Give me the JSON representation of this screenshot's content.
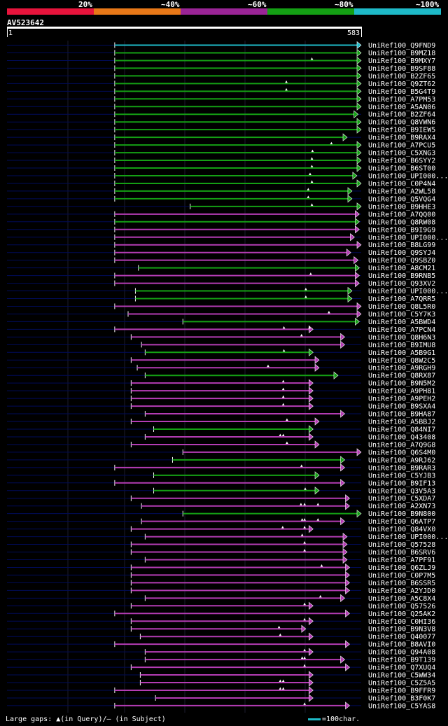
{
  "query_id": "AV523642",
  "legend": {
    "labels": [
      "20%",
      "~40%",
      "~60%",
      "~80%",
      "~100%"
    ],
    "colors": [
      "#e8143c",
      "#e87818",
      "#9a2496",
      "#14a014",
      "#1ebac8"
    ]
  },
  "ruler": {
    "start_label": "1",
    "end_label": "583"
  },
  "footer": {
    "gaps_text": "Large gaps: ▲(in Query)/– (in Subject)",
    "scale_text": "=100char."
  },
  "chart_data": {
    "type": "alignment-hits",
    "query_length": 583,
    "title": "AV523642",
    "color_key": {
      "G": "#14a014",
      "P": "#b43cb4",
      "C": "#1ebac8",
      "N": "#000b5a"
    },
    "hits": [
      {
        "name": "UniRef100_Q9FND9",
        "start": 178,
        "end": 583,
        "color": "C",
        "gaps": []
      },
      {
        "name": "UniRef100_B9MZ18",
        "start": 178,
        "end": 583,
        "color": "G",
        "gaps": []
      },
      {
        "name": "UniRef100_B9MXY7",
        "start": 178,
        "end": 583,
        "color": "G",
        "gaps": [
          502
        ]
      },
      {
        "name": "UniRef100_B9SF88",
        "start": 178,
        "end": 583,
        "color": "G",
        "gaps": []
      },
      {
        "name": "UniRef100_B2ZF65",
        "start": 178,
        "end": 583,
        "color": "G",
        "gaps": []
      },
      {
        "name": "UniRef100_Q9ZT62",
        "start": 178,
        "end": 583,
        "color": "G",
        "gaps": [
          460
        ]
      },
      {
        "name": "UniRef100_B5G4T9",
        "start": 178,
        "end": 583,
        "color": "G",
        "gaps": [
          460
        ]
      },
      {
        "name": "UniRef100_A7PM53",
        "start": 178,
        "end": 583,
        "color": "G",
        "gaps": []
      },
      {
        "name": "UniRef100_A5AN06",
        "start": 178,
        "end": 583,
        "color": "G",
        "gaps": []
      },
      {
        "name": "UniRef100_B2ZF64",
        "start": 178,
        "end": 578,
        "color": "G",
        "gaps": []
      },
      {
        "name": "UniRef100_Q8VWN6",
        "start": 178,
        "end": 583,
        "color": "G",
        "gaps": []
      },
      {
        "name": "UniRef100_B9IEW5",
        "start": 178,
        "end": 583,
        "color": "G",
        "gaps": []
      },
      {
        "name": "UniRef100_B9RAX4",
        "start": 178,
        "end": 560,
        "color": "G",
        "gaps": []
      },
      {
        "name": "UniRef100_A7PCU5",
        "start": 178,
        "end": 583,
        "color": "G",
        "gaps": [
          534
        ]
      },
      {
        "name": "UniRef100_C5XNG3",
        "start": 178,
        "end": 583,
        "color": "G",
        "gaps": [
          503
        ]
      },
      {
        "name": "UniRef100_B6SYY2",
        "start": 178,
        "end": 583,
        "color": "G",
        "gaps": [
          502
        ]
      },
      {
        "name": "UniRef100_B6ST00",
        "start": 178,
        "end": 583,
        "color": "G",
        "gaps": [
          502
        ]
      },
      {
        "name": "UniRef100_UPI000...",
        "start": 178,
        "end": 576,
        "color": "G",
        "gaps": [
          499
        ]
      },
      {
        "name": "UniRef100_C0P4N4",
        "start": 178,
        "end": 583,
        "color": "G",
        "gaps": [
          502
        ]
      },
      {
        "name": "UniRef100_A2WL58",
        "start": 178,
        "end": 568,
        "color": "G",
        "gaps": [
          496
        ]
      },
      {
        "name": "UniRef100_Q5VQG4",
        "start": 178,
        "end": 568,
        "color": "G",
        "gaps": [
          496
        ]
      },
      {
        "name": "UniRef100_B9HHE3",
        "start": 302,
        "end": 583,
        "color": "G",
        "gaps": [
          502
        ]
      },
      {
        "name": "UniRef100_A7QQ00",
        "start": 178,
        "end": 580,
        "color": "P",
        "gaps": []
      },
      {
        "name": "UniRef100_Q8RW08",
        "start": 178,
        "end": 580,
        "color": "G",
        "gaps": []
      },
      {
        "name": "UniRef100_B9I9G9",
        "start": 178,
        "end": 580,
        "color": "P",
        "gaps": []
      },
      {
        "name": "UniRef100_UPI000...",
        "start": 178,
        "end": 572,
        "color": "P",
        "gaps": []
      },
      {
        "name": "UniRef100_B8LG99",
        "start": 178,
        "end": 583,
        "color": "P",
        "gaps": []
      },
      {
        "name": "UniRef100_Q9SYJ4",
        "start": 178,
        "end": 566,
        "color": "P",
        "gaps": []
      },
      {
        "name": "UniRef100_Q9SBZ0",
        "start": 178,
        "end": 578,
        "color": "P",
        "gaps": []
      },
      {
        "name": "UniRef100_A8CM21",
        "start": 217,
        "end": 580,
        "color": "G",
        "gaps": []
      },
      {
        "name": "UniRef100_B9RNB5",
        "start": 178,
        "end": 580,
        "color": "P",
        "gaps": [
          500
        ]
      },
      {
        "name": "UniRef100_Q93XV2",
        "start": 178,
        "end": 580,
        "color": "P",
        "gaps": []
      },
      {
        "name": "UniRef100_UPI000...",
        "start": 212,
        "end": 568,
        "color": "G",
        "gaps": [
          492
        ]
      },
      {
        "name": "UniRef100_A7QRR5",
        "start": 212,
        "end": 568,
        "color": "G",
        "gaps": [
          492
        ]
      },
      {
        "name": "UniRef100_Q8L5R0",
        "start": 178,
        "end": 583,
        "color": "P",
        "gaps": []
      },
      {
        "name": "UniRef100_C5Y7K3",
        "start": 200,
        "end": 583,
        "color": "P",
        "gaps": [
          530
        ]
      },
      {
        "name": "UniRef100_A5BWD4",
        "start": 290,
        "end": 580,
        "color": "G",
        "gaps": []
      },
      {
        "name": "UniRef100_A7PCN4",
        "start": 178,
        "end": 504,
        "color": "P",
        "gaps": [
          456,
          498
        ]
      },
      {
        "name": "UniRef100_Q8H6N3",
        "start": 205,
        "end": 556,
        "color": "P",
        "gaps": [
          485
        ]
      },
      {
        "name": "UniRef100_B9IMU8",
        "start": 222,
        "end": 556,
        "color": "P",
        "gaps": []
      },
      {
        "name": "UniRef100_A5B9G1",
        "start": 228,
        "end": 504,
        "color": "G",
        "gaps": [
          456
        ]
      },
      {
        "name": "UniRef100_Q8W2C5",
        "start": 205,
        "end": 514,
        "color": "P",
        "gaps": []
      },
      {
        "name": "UniRef100_A9RGH9",
        "start": 215,
        "end": 514,
        "color": "P",
        "gaps": [
          430
        ]
      },
      {
        "name": "UniRef100_Q8RX87",
        "start": 228,
        "end": 545,
        "color": "G",
        "gaps": []
      },
      {
        "name": "UniRef100_B9N5M2",
        "start": 205,
        "end": 504,
        "color": "P",
        "gaps": [
          455
        ]
      },
      {
        "name": "UniRef100_A9PH81",
        "start": 205,
        "end": 504,
        "color": "P",
        "gaps": [
          455
        ]
      },
      {
        "name": "UniRef100_A9PEH2",
        "start": 205,
        "end": 504,
        "color": "P",
        "gaps": [
          455
        ]
      },
      {
        "name": "UniRef100_B9SXA4",
        "start": 205,
        "end": 504,
        "color": "P",
        "gaps": [
          455
        ]
      },
      {
        "name": "UniRef100_B9HA87",
        "start": 228,
        "end": 556,
        "color": "P",
        "gaps": []
      },
      {
        "name": "UniRef100_A5BBJ2",
        "start": 205,
        "end": 514,
        "color": "P",
        "gaps": [
          461
        ]
      },
      {
        "name": "UniRef100_Q84NI7",
        "start": 242,
        "end": 504,
        "color": "G",
        "gaps": []
      },
      {
        "name": "UniRef100_Q43408",
        "start": 228,
        "end": 504,
        "color": "P",
        "gaps": [
          450,
          455
        ]
      },
      {
        "name": "UniRef100_A7Q9G8",
        "start": 205,
        "end": 514,
        "color": "P",
        "gaps": [
          461
        ]
      },
      {
        "name": "UniRef100_Q6S4M0",
        "start": 290,
        "end": 583,
        "color": "P",
        "gaps": []
      },
      {
        "name": "UniRef100_A9RJ62",
        "start": 273,
        "end": 556,
        "color": "G",
        "gaps": []
      },
      {
        "name": "UniRef100_B9RAR3",
        "start": 178,
        "end": 556,
        "color": "P",
        "gaps": [
          485
        ]
      },
      {
        "name": "UniRef100_C5YJB3",
        "start": 242,
        "end": 514,
        "color": "G",
        "gaps": []
      },
      {
        "name": "UniRef100_B9IF13",
        "start": 178,
        "end": 556,
        "color": "P",
        "gaps": []
      },
      {
        "name": "UniRef100_Q3V5A3",
        "start": 242,
        "end": 514,
        "color": "G",
        "gaps": [
          491
        ]
      },
      {
        "name": "UniRef100_C5XDA7",
        "start": 205,
        "end": 564,
        "color": "P",
        "gaps": []
      },
      {
        "name": "UniRef100_A2XN73",
        "start": 222,
        "end": 564,
        "color": "P",
        "gaps": [
          484,
          490,
          512
        ]
      },
      {
        "name": "UniRef100_B9N800",
        "start": 290,
        "end": 583,
        "color": "G",
        "gaps": []
      },
      {
        "name": "UniRef100_Q6ATP7",
        "start": 222,
        "end": 556,
        "color": "P",
        "gaps": [
          486,
          490,
          512
        ]
      },
      {
        "name": "UniRef100_Q84VX0",
        "start": 205,
        "end": 504,
        "color": "P",
        "gaps": [
          454,
          490
        ]
      },
      {
        "name": "UniRef100_UPI000...",
        "start": 228,
        "end": 560,
        "color": "P",
        "gaps": [
          486
        ]
      },
      {
        "name": "UniRef100_Q57528",
        "start": 205,
        "end": 560,
        "color": "P",
        "gaps": [
          490
        ]
      },
      {
        "name": "UniRef100_B6SRV6",
        "start": 205,
        "end": 560,
        "color": "P",
        "gaps": [
          490
        ]
      },
      {
        "name": "UniRef100_A7PF91",
        "start": 228,
        "end": 560,
        "color": "P",
        "gaps": []
      },
      {
        "name": "UniRef100_Q6ZLJ9",
        "start": 205,
        "end": 564,
        "color": "P",
        "gaps": [
          518
        ]
      },
      {
        "name": "UniRef100_C0P7M5",
        "start": 205,
        "end": 564,
        "color": "P",
        "gaps": []
      },
      {
        "name": "UniRef100_B6SSR5",
        "start": 205,
        "end": 564,
        "color": "P",
        "gaps": []
      },
      {
        "name": "UniRef100_A2YJD0",
        "start": 205,
        "end": 564,
        "color": "P",
        "gaps": []
      },
      {
        "name": "UniRef100_A5C8X4",
        "start": 228,
        "end": 556,
        "color": "P",
        "gaps": [
          516
        ]
      },
      {
        "name": "UniRef100_Q57526",
        "start": 205,
        "end": 504,
        "color": "P",
        "gaps": [
          490
        ]
      },
      {
        "name": "UniRef100_Q25AK2",
        "start": 178,
        "end": 564,
        "color": "P",
        "gaps": []
      },
      {
        "name": "UniRef100_C0HI36",
        "start": 205,
        "end": 504,
        "color": "P",
        "gaps": [
          490
        ]
      },
      {
        "name": "UniRef100_B9N3V8",
        "start": 205,
        "end": 492,
        "color": "P",
        "gaps": [
          448
        ]
      },
      {
        "name": "UniRef100_Q40077",
        "start": 220,
        "end": 504,
        "color": "P",
        "gaps": [
          450
        ]
      },
      {
        "name": "UniRef100_B8AVI0",
        "start": 178,
        "end": 564,
        "color": "P",
        "gaps": []
      },
      {
        "name": "UniRef100_Q94A08",
        "start": 228,
        "end": 504,
        "color": "P",
        "gaps": [
          490
        ]
      },
      {
        "name": "UniRef100_B9T139",
        "start": 228,
        "end": 556,
        "color": "P",
        "gaps": [
          486,
          490
        ]
      },
      {
        "name": "UniRef100_Q7XUQ4",
        "start": 205,
        "end": 564,
        "color": "P",
        "gaps": [
          490
        ]
      },
      {
        "name": "UniRef100_C5WW34",
        "start": 220,
        "end": 504,
        "color": "P",
        "gaps": []
      },
      {
        "name": "UniRef100_C5Z5A5",
        "start": 220,
        "end": 504,
        "color": "P",
        "gaps": [
          450,
          455
        ]
      },
      {
        "name": "UniRef100_B9FFR9",
        "start": 178,
        "end": 504,
        "color": "P",
        "gaps": [
          450,
          455
        ]
      },
      {
        "name": "UniRef100_B3F0K7",
        "start": 245,
        "end": 504,
        "color": "P",
        "gaps": []
      },
      {
        "name": "UniRef100_C5YAS8",
        "start": 178,
        "end": 564,
        "color": "P",
        "gaps": [
          490
        ]
      }
    ]
  }
}
